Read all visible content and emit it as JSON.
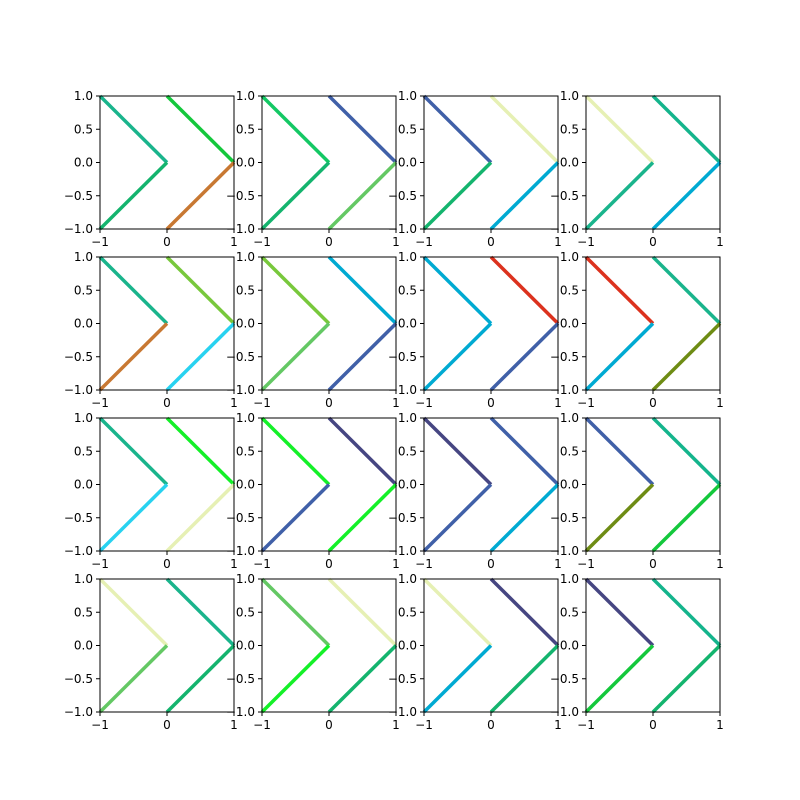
{
  "chart_data": {
    "type": "line",
    "layout": {
      "rows": 4,
      "cols": 4
    },
    "xlim": [
      -1,
      1
    ],
    "ylim": [
      -1,
      1
    ],
    "xticks": [
      -1,
      0,
      1
    ],
    "xtick_labels": [
      "−1",
      "0",
      "1"
    ],
    "yticks": [
      -1.0,
      -0.5,
      0.0,
      0.5,
      1.0
    ],
    "ytick_labels": [
      "−1.0",
      "−0.5",
      "0.0",
      "0.5",
      "1.0"
    ],
    "grid": false,
    "segment_shapes": {
      "upper_left": [
        [
          -1,
          1
        ],
        [
          0,
          0
        ]
      ],
      "lower_left": [
        [
          -1,
          -1
        ],
        [
          0,
          0
        ]
      ],
      "upper_right": [
        [
          0,
          1
        ],
        [
          1,
          0
        ]
      ],
      "lower_right": [
        [
          0,
          -1
        ],
        [
          1,
          0
        ]
      ]
    },
    "panels": [
      {
        "colors": {
          "upper_left": "#1ab48c",
          "lower_left": "#14b46e",
          "upper_right": "#14c83c",
          "lower_right": "#c87832"
        }
      },
      {
        "colors": {
          "upper_left": "#14c864",
          "lower_left": "#14b46e",
          "upper_right": "#4060a8",
          "lower_right": "#64c864"
        }
      },
      {
        "colors": {
          "upper_left": "#4060a8",
          "lower_left": "#14b46e",
          "upper_right": "#e6f0b4",
          "lower_right": "#00aad2"
        }
      },
      {
        "colors": {
          "upper_left": "#e6f0b4",
          "lower_left": "#1ab48c",
          "upper_right": "#14b48c",
          "lower_right": "#00aad2"
        }
      },
      {
        "colors": {
          "upper_left": "#1ab48c",
          "lower_left": "#c87832",
          "upper_right": "#78c83c",
          "lower_right": "#28d2f0"
        }
      },
      {
        "colors": {
          "upper_left": "#78c83c",
          "lower_left": "#64c864",
          "upper_right": "#00aad2",
          "lower_right": "#4060a8"
        }
      },
      {
        "colors": {
          "upper_left": "#00aad2",
          "lower_left": "#00aad2",
          "upper_right": "#dc321e",
          "lower_right": "#4060a8"
        }
      },
      {
        "colors": {
          "upper_left": "#dc321e",
          "lower_left": "#00aad2",
          "upper_right": "#1ab48c",
          "lower_right": "#6e8c14"
        }
      },
      {
        "colors": {
          "upper_left": "#1ab48c",
          "lower_left": "#28d2f0",
          "upper_right": "#14f028",
          "lower_right": "#e6f0b4"
        }
      },
      {
        "colors": {
          "upper_left": "#14f028",
          "lower_left": "#4060a8",
          "upper_right": "#464682",
          "lower_right": "#14f028"
        }
      },
      {
        "colors": {
          "upper_left": "#464682",
          "lower_left": "#4060a8",
          "upper_right": "#4060a8",
          "lower_right": "#00aad2"
        }
      },
      {
        "colors": {
          "upper_left": "#4060a8",
          "lower_left": "#6e8c14",
          "upper_right": "#14b48c",
          "lower_right": "#14c83c"
        }
      },
      {
        "colors": {
          "upper_left": "#e6f0b4",
          "lower_left": "#64c864",
          "upper_right": "#1ab48c",
          "lower_right": "#14b46e"
        }
      },
      {
        "colors": {
          "upper_left": "#64c864",
          "lower_left": "#14f028",
          "upper_right": "#e6f0b4",
          "lower_right": "#14b46e"
        }
      },
      {
        "colors": {
          "upper_left": "#e6f0b4",
          "lower_left": "#00aad2",
          "upper_right": "#464682",
          "lower_right": "#14b46e"
        }
      },
      {
        "colors": {
          "upper_left": "#464682",
          "lower_left": "#14c83c",
          "upper_right": "#14b48c",
          "lower_right": "#14b46e"
        }
      }
    ]
  }
}
